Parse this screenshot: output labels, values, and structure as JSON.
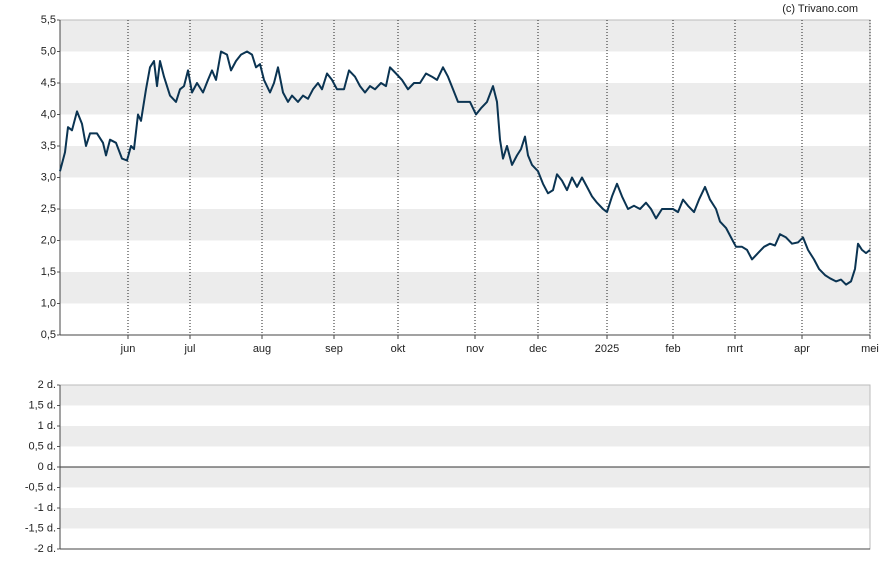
{
  "copyright": "(c) Trivano.com",
  "chart_data": [
    {
      "type": "line",
      "x": [
        0,
        5,
        8,
        12,
        17,
        22,
        26,
        30,
        37,
        43,
        46,
        50,
        56,
        62,
        67,
        71,
        74,
        78,
        81,
        86,
        90,
        94,
        97,
        100,
        104,
        110,
        116,
        120,
        124,
        128,
        132,
        137,
        143,
        148,
        152,
        156,
        161,
        167,
        171,
        176,
        181,
        187,
        192,
        196,
        200,
        204,
        210,
        214,
        218,
        223,
        228,
        232,
        238,
        243,
        248,
        253,
        258,
        262,
        267,
        272,
        277,
        284,
        289,
        295,
        300,
        305,
        310,
        315,
        321,
        326,
        330,
        336,
        342,
        348,
        354,
        360,
        366,
        372,
        377,
        383,
        388,
        393,
        398,
        404,
        410,
        416,
        421,
        427,
        433,
        437,
        440,
        443,
        447,
        452,
        457,
        461,
        465,
        468,
        472,
        478,
        483,
        488,
        493,
        497,
        502,
        507,
        512,
        517,
        522,
        527,
        532,
        537,
        543,
        547,
        552,
        557,
        562,
        568,
        574,
        580,
        586,
        591,
        596,
        602,
        607,
        613,
        618,
        623,
        628,
        634,
        639,
        645,
        650,
        656,
        660,
        666,
        671,
        676,
        682,
        687,
        692,
        698,
        704,
        710,
        715,
        720,
        726,
        732,
        738,
        743,
        748,
        754,
        759,
        765,
        770,
        776,
        781,
        786,
        791,
        795,
        798,
        802,
        806,
        810
      ],
      "values": [
        3.1,
        3.4,
        3.8,
        3.75,
        4.05,
        3.85,
        3.5,
        3.7,
        3.7,
        3.55,
        3.35,
        3.6,
        3.55,
        3.3,
        3.27,
        3.5,
        3.45,
        4.0,
        3.9,
        4.4,
        4.75,
        4.85,
        4.45,
        4.85,
        4.6,
        4.3,
        4.2,
        4.4,
        4.45,
        4.7,
        4.35,
        4.5,
        4.35,
        4.55,
        4.7,
        4.55,
        5.0,
        4.95,
        4.7,
        4.85,
        4.95,
        5.0,
        4.95,
        4.75,
        4.8,
        4.55,
        4.35,
        4.5,
        4.75,
        4.35,
        4.2,
        4.3,
        4.2,
        4.3,
        4.25,
        4.4,
        4.5,
        4.4,
        4.65,
        4.55,
        4.4,
        4.4,
        4.7,
        4.6,
        4.45,
        4.35,
        4.45,
        4.4,
        4.5,
        4.45,
        4.75,
        4.65,
        4.55,
        4.4,
        4.5,
        4.5,
        4.65,
        4.6,
        4.55,
        4.75,
        4.6,
        4.4,
        4.2,
        4.2,
        4.2,
        4.0,
        4.1,
        4.2,
        4.45,
        4.2,
        3.6,
        3.3,
        3.5,
        3.2,
        3.35,
        3.45,
        3.65,
        3.35,
        3.2,
        3.1,
        2.9,
        2.75,
        2.8,
        3.05,
        2.95,
        2.8,
        3.0,
        2.85,
        3.0,
        2.85,
        2.7,
        2.6,
        2.5,
        2.45,
        2.7,
        2.9,
        2.7,
        2.5,
        2.55,
        2.5,
        2.6,
        2.5,
        2.35,
        2.5,
        2.5,
        2.5,
        2.45,
        2.65,
        2.55,
        2.45,
        2.65,
        2.85,
        2.65,
        2.5,
        2.3,
        2.2,
        2.05,
        1.9,
        1.9,
        1.85,
        1.7,
        1.8,
        1.9,
        1.95,
        1.92,
        2.1,
        2.05,
        1.95,
        1.97,
        2.05,
        1.85,
        1.7,
        1.55,
        1.45,
        1.4,
        1.35,
        1.38,
        1.3,
        1.35,
        1.55,
        1.95,
        1.85,
        1.8,
        1.85
      ],
      "color": "#0b3452",
      "xlim": [
        0,
        810
      ],
      "xticks": [
        {
          "value": 68,
          "label": "jun"
        },
        {
          "value": 130,
          "label": "jul"
        },
        {
          "value": 202,
          "label": "aug"
        },
        {
          "value": 274,
          "label": "sep"
        },
        {
          "value": 338,
          "label": "okt"
        },
        {
          "value": 415,
          "label": "nov"
        },
        {
          "value": 478,
          "label": "dec"
        },
        {
          "value": 547,
          "label": "2025"
        },
        {
          "value": 613,
          "label": "feb"
        },
        {
          "value": 675,
          "label": "mrt"
        },
        {
          "value": 742,
          "label": "apr"
        },
        {
          "value": 810,
          "label": "mei"
        }
      ],
      "ylim": [
        0.5,
        5.5
      ],
      "yticks": [
        {
          "value": 0.5,
          "label": "0,5"
        },
        {
          "value": 1,
          "label": "1,0"
        },
        {
          "value": 1.5,
          "label": "1,5"
        },
        {
          "value": 2,
          "label": "2,0"
        },
        {
          "value": 2.5,
          "label": "2,5"
        },
        {
          "value": 3,
          "label": "3,0"
        },
        {
          "value": 3.5,
          "label": "3,5"
        },
        {
          "value": 4,
          "label": "4,0"
        },
        {
          "value": 4.5,
          "label": "4,5"
        },
        {
          "value": 5,
          "label": "5,0"
        },
        {
          "value": 5.5,
          "label": "5,5"
        }
      ]
    },
    {
      "type": "bar",
      "ylim": [
        -2,
        2
      ],
      "yticks": [
        {
          "value": 2,
          "label": "2 d."
        },
        {
          "value": 1.5,
          "label": "1,5 d."
        },
        {
          "value": 1,
          "label": "1 d."
        },
        {
          "value": 0.5,
          "label": "0,5 d."
        },
        {
          "value": 0,
          "label": "0 d."
        },
        {
          "value": -0.5,
          "label": "-0,5 d."
        },
        {
          "value": -1,
          "label": "-1 d."
        },
        {
          "value": -1.5,
          "label": "-1,5 d."
        },
        {
          "value": -2,
          "label": "-2 d."
        }
      ]
    }
  ]
}
